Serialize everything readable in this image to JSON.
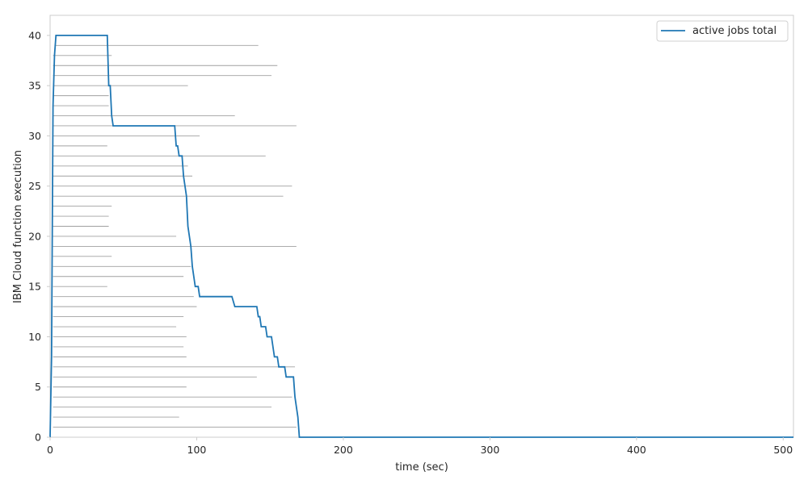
{
  "chart_data": {
    "type": "line",
    "xlabel": "time (sec)",
    "ylabel": "IBM Cloud function execution",
    "xlim": [
      0,
      507
    ],
    "ylim": [
      0,
      42
    ],
    "xticks": [
      0,
      100,
      200,
      300,
      400,
      500
    ],
    "yticks": [
      0,
      5,
      10,
      15,
      20,
      25,
      30,
      35,
      40
    ],
    "grid": false,
    "legend_position": "top-right",
    "series": [
      {
        "name": "active jobs total",
        "color": "#1f77b4",
        "points": [
          [
            0,
            0
          ],
          [
            1,
            8
          ],
          [
            2,
            33
          ],
          [
            3,
            38
          ],
          [
            4,
            40
          ],
          [
            39,
            40
          ],
          [
            40,
            35
          ],
          [
            41,
            35
          ],
          [
            42,
            32
          ],
          [
            43,
            31
          ],
          [
            85,
            31
          ],
          [
            86,
            29
          ],
          [
            87,
            29
          ],
          [
            88,
            28
          ],
          [
            90,
            28
          ],
          [
            91,
            26
          ],
          [
            93,
            24
          ],
          [
            94,
            21
          ],
          [
            96,
            19
          ],
          [
            97,
            17
          ],
          [
            98,
            16
          ],
          [
            99,
            15
          ],
          [
            101,
            15
          ],
          [
            102,
            14
          ],
          [
            124,
            14
          ],
          [
            126,
            13
          ],
          [
            141,
            13
          ],
          [
            142,
            12
          ],
          [
            143,
            12
          ],
          [
            144,
            11
          ],
          [
            147,
            11
          ],
          [
            148,
            10
          ],
          [
            151,
            10
          ],
          [
            153,
            8
          ],
          [
            155,
            8
          ],
          [
            156,
            7
          ],
          [
            160,
            7
          ],
          [
            161,
            6
          ],
          [
            166,
            6
          ],
          [
            167,
            4
          ],
          [
            168,
            3
          ],
          [
            169,
            2
          ],
          [
            170,
            0
          ],
          [
            507,
            0
          ]
        ]
      }
    ],
    "executions": [
      {
        "job": 1,
        "start": 2,
        "end": 168
      },
      {
        "job": 2,
        "start": 2,
        "end": 88
      },
      {
        "job": 3,
        "start": 2,
        "end": 151
      },
      {
        "job": 4,
        "start": 2,
        "end": 165
      },
      {
        "job": 5,
        "start": 2,
        "end": 93
      },
      {
        "job": 6,
        "start": 2,
        "end": 141
      },
      {
        "job": 7,
        "start": 2,
        "end": 167
      },
      {
        "job": 8,
        "start": 2,
        "end": 93
      },
      {
        "job": 9,
        "start": 2,
        "end": 91
      },
      {
        "job": 10,
        "start": 2,
        "end": 93
      },
      {
        "job": 11,
        "start": 2,
        "end": 86
      },
      {
        "job": 12,
        "start": 2,
        "end": 91
      },
      {
        "job": 13,
        "start": 2,
        "end": 100
      },
      {
        "job": 14,
        "start": 2,
        "end": 98
      },
      {
        "job": 15,
        "start": 2,
        "end": 39
      },
      {
        "job": 16,
        "start": 2,
        "end": 91
      },
      {
        "job": 17,
        "start": 2,
        "end": 96
      },
      {
        "job": 18,
        "start": 2,
        "end": 42
      },
      {
        "job": 19,
        "start": 2,
        "end": 168
      },
      {
        "job": 20,
        "start": 2,
        "end": 86
      },
      {
        "job": 21,
        "start": 2,
        "end": 40
      },
      {
        "job": 22,
        "start": 2,
        "end": 40
      },
      {
        "job": 23,
        "start": 2,
        "end": 42
      },
      {
        "job": 24,
        "start": 2,
        "end": 159
      },
      {
        "job": 25,
        "start": 2,
        "end": 165
      },
      {
        "job": 26,
        "start": 2,
        "end": 97
      },
      {
        "job": 27,
        "start": 2,
        "end": 94
      },
      {
        "job": 28,
        "start": 2,
        "end": 147
      },
      {
        "job": 29,
        "start": 2,
        "end": 39
      },
      {
        "job": 30,
        "start": 2,
        "end": 102
      },
      {
        "job": 31,
        "start": 2,
        "end": 168
      },
      {
        "job": 32,
        "start": 2,
        "end": 126
      },
      {
        "job": 33,
        "start": 2,
        "end": 40
      },
      {
        "job": 34,
        "start": 2,
        "end": 40
      },
      {
        "job": 35,
        "start": 2,
        "end": 94
      },
      {
        "job": 36,
        "start": 2,
        "end": 151
      },
      {
        "job": 37,
        "start": 2,
        "end": 155
      },
      {
        "job": 38,
        "start": 2,
        "end": 42
      },
      {
        "job": 39,
        "start": 3,
        "end": 142
      }
    ]
  },
  "colors": {
    "line": "#1f77b4",
    "execution": "#a0a0a0",
    "frame": "#cccccc",
    "text": "#262626"
  }
}
